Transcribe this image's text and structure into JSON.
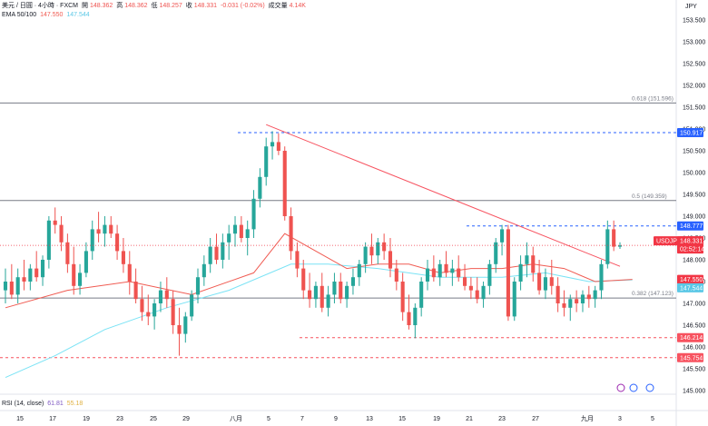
{
  "header": {
    "symbol": "美元 / 日圓 · 4小時 · FXCM",
    "open_label": "開",
    "open": "148.362",
    "high_label": "高",
    "high": "148.362",
    "low_label": "低",
    "low": "148.257",
    "close_label": "收",
    "close": "148.331",
    "change": "-0.031 (-0.02%)",
    "volume_label": "成交量",
    "volume": "4.14K",
    "ema_label": "EMA 50/100",
    "ema50": "147.550",
    "ema100": "147.544",
    "currency": "JPY"
  },
  "rsi": {
    "label": "RSI (14, close)",
    "value1": "61.81",
    "value2": "55.18"
  },
  "colors": {
    "up": "#26a69a",
    "down": "#ef5350",
    "ema50": "#f05b52",
    "ema100": "#7ae3f5",
    "trend": "#f7525f",
    "blue": "#2962ff",
    "fib": "#787b86"
  },
  "chart_data": {
    "type": "candlestick",
    "series_name": "USDJPY",
    "y_axis": {
      "min": 145.0,
      "max": 153.5,
      "side": "right",
      "ticks": [
        "153.500",
        "153.000",
        "152.500",
        "152.000",
        "151.500",
        "151.000",
        "150.500",
        "150.000",
        "149.500",
        "149.000",
        "148.500",
        "148.000",
        "147.500",
        "147.000",
        "146.500",
        "146.000",
        "145.500",
        "145.000"
      ]
    },
    "x_axis": {
      "labels": [
        "15",
        "17",
        "19",
        "23",
        "25",
        "29",
        "八月",
        "5",
        "7",
        "9",
        "13",
        "15",
        "19",
        "21",
        "23",
        "27",
        "九月",
        "3",
        "5"
      ]
    },
    "ohlc": [
      [
        147.3,
        147.8,
        147.0,
        147.5
      ],
      [
        147.5,
        147.9,
        147.1,
        147.2
      ],
      [
        147.2,
        147.8,
        147.0,
        147.6
      ],
      [
        147.6,
        148.0,
        147.3,
        147.5
      ],
      [
        147.5,
        147.9,
        147.3,
        147.8
      ],
      [
        147.8,
        148.2,
        147.5,
        147.6
      ],
      [
        147.6,
        148.1,
        147.4,
        148.0
      ],
      [
        148.0,
        149.0,
        147.8,
        148.9
      ],
      [
        148.9,
        149.2,
        148.6,
        148.8
      ],
      [
        148.8,
        149.0,
        148.2,
        148.4
      ],
      [
        148.4,
        148.6,
        147.7,
        147.9
      ],
      [
        147.9,
        148.3,
        147.2,
        147.4
      ],
      [
        147.4,
        147.9,
        147.2,
        147.7
      ],
      [
        147.7,
        148.4,
        147.6,
        148.2
      ],
      [
        148.2,
        148.9,
        148.0,
        148.7
      ],
      [
        148.7,
        149.1,
        148.4,
        148.6
      ],
      [
        148.6,
        149.0,
        148.3,
        148.8
      ],
      [
        148.8,
        149.0,
        148.5,
        148.6
      ],
      [
        148.6,
        148.8,
        148.0,
        148.2
      ],
      [
        148.2,
        148.5,
        147.7,
        147.9
      ],
      [
        147.9,
        148.2,
        147.2,
        147.5
      ],
      [
        147.5,
        147.8,
        147.0,
        147.1
      ],
      [
        147.1,
        147.4,
        146.6,
        146.8
      ],
      [
        146.8,
        147.2,
        146.5,
        146.7
      ],
      [
        146.7,
        147.1,
        146.4,
        147.0
      ],
      [
        147.0,
        147.5,
        146.8,
        147.3
      ],
      [
        147.3,
        147.6,
        146.9,
        147.1
      ],
      [
        147.1,
        147.3,
        146.3,
        146.5
      ],
      [
        146.5,
        146.9,
        145.8,
        146.3
      ],
      [
        146.3,
        146.8,
        146.1,
        146.7
      ],
      [
        146.7,
        147.3,
        146.6,
        147.2
      ],
      [
        147.2,
        147.8,
        147.0,
        147.6
      ],
      [
        147.6,
        148.1,
        147.4,
        147.9
      ],
      [
        147.9,
        148.5,
        147.7,
        148.3
      ],
      [
        148.3,
        148.6,
        147.9,
        148.0
      ],
      [
        148.0,
        148.6,
        147.8,
        148.4
      ],
      [
        148.4,
        148.8,
        148.0,
        148.6
      ],
      [
        148.6,
        149.0,
        148.3,
        148.8
      ],
      [
        148.8,
        149.0,
        148.4,
        148.5
      ],
      [
        148.5,
        148.9,
        148.1,
        148.7
      ],
      [
        148.7,
        149.6,
        148.5,
        149.4
      ],
      [
        149.4,
        150.1,
        149.2,
        149.9
      ],
      [
        149.9,
        150.8,
        149.7,
        150.6
      ],
      [
        150.6,
        150.95,
        150.3,
        150.7
      ],
      [
        150.7,
        150.9,
        150.4,
        150.5
      ],
      [
        150.5,
        150.6,
        148.9,
        149.0
      ],
      [
        149.0,
        149.2,
        148.0,
        148.2
      ],
      [
        148.2,
        148.4,
        147.6,
        147.8
      ],
      [
        147.8,
        148.0,
        147.1,
        147.3
      ],
      [
        147.3,
        147.7,
        146.9,
        147.1
      ],
      [
        147.1,
        147.5,
        146.9,
        147.4
      ],
      [
        147.4,
        147.7,
        146.8,
        146.9
      ],
      [
        146.9,
        147.4,
        146.7,
        147.2
      ],
      [
        147.2,
        147.7,
        147.0,
        147.5
      ],
      [
        147.5,
        147.7,
        147.0,
        147.1
      ],
      [
        147.1,
        147.5,
        146.9,
        147.4
      ],
      [
        147.4,
        147.8,
        147.2,
        147.6
      ],
      [
        147.6,
        148.0,
        147.4,
        147.9
      ],
      [
        147.9,
        148.4,
        147.7,
        148.3
      ],
      [
        148.3,
        148.6,
        147.9,
        148.1
      ],
      [
        148.1,
        148.5,
        147.9,
        148.4
      ],
      [
        148.4,
        148.6,
        148.0,
        148.2
      ],
      [
        148.2,
        148.5,
        147.6,
        147.8
      ],
      [
        147.8,
        148.0,
        147.3,
        147.5
      ],
      [
        147.5,
        147.7,
        146.6,
        146.8
      ],
      [
        146.8,
        147.2,
        146.4,
        146.5
      ],
      [
        146.5,
        147.0,
        146.2,
        146.9
      ],
      [
        146.9,
        147.6,
        146.7,
        147.5
      ],
      [
        147.5,
        148.0,
        147.3,
        147.8
      ],
      [
        147.8,
        148.1,
        147.5,
        147.6
      ],
      [
        147.6,
        148.0,
        147.4,
        147.9
      ],
      [
        147.9,
        148.2,
        147.6,
        147.7
      ],
      [
        147.7,
        148.0,
        147.4,
        147.8
      ],
      [
        147.8,
        148.1,
        147.5,
        147.6
      ],
      [
        147.6,
        147.9,
        147.3,
        147.4
      ],
      [
        147.4,
        147.6,
        147.1,
        147.3
      ],
      [
        147.3,
        147.6,
        147.0,
        147.1
      ],
      [
        147.1,
        147.5,
        146.9,
        147.4
      ],
      [
        147.4,
        148.0,
        147.2,
        147.9
      ],
      [
        147.9,
        148.5,
        147.7,
        148.4
      ],
      [
        148.4,
        148.8,
        148.1,
        148.7
      ],
      [
        148.7,
        148.8,
        146.6,
        146.7
      ],
      [
        146.7,
        147.6,
        146.6,
        147.5
      ],
      [
        147.5,
        148.1,
        147.3,
        147.9
      ],
      [
        147.9,
        148.4,
        147.6,
        148.1
      ],
      [
        148.1,
        148.3,
        147.5,
        147.7
      ],
      [
        147.7,
        148.0,
        147.2,
        147.3
      ],
      [
        147.3,
        147.8,
        147.1,
        147.6
      ],
      [
        147.6,
        148.0,
        147.2,
        147.4
      ],
      [
        147.4,
        147.6,
        146.8,
        147.0
      ],
      [
        147.0,
        147.3,
        146.7,
        146.9
      ],
      [
        146.9,
        147.2,
        146.6,
        147.1
      ],
      [
        147.1,
        147.3,
        146.8,
        147.0
      ],
      [
        147.0,
        147.3,
        146.8,
        147.2
      ],
      [
        147.2,
        147.4,
        146.9,
        147.1
      ],
      [
        147.1,
        147.4,
        146.9,
        147.3
      ],
      [
        147.3,
        148.0,
        147.1,
        147.9
      ],
      [
        147.9,
        148.9,
        147.8,
        148.7
      ],
      [
        148.7,
        148.9,
        148.2,
        148.3
      ],
      [
        148.3,
        148.4,
        148.25,
        148.33
      ]
    ],
    "ema50": [
      [
        0,
        146.9
      ],
      [
        10,
        147.3
      ],
      [
        20,
        147.5
      ],
      [
        30,
        147.2
      ],
      [
        40,
        147.7
      ],
      [
        45,
        148.6
      ],
      [
        50,
        148.2
      ],
      [
        55,
        147.8
      ],
      [
        60,
        147.9
      ],
      [
        65,
        147.9
      ],
      [
        70,
        147.7
      ],
      [
        75,
        147.8
      ],
      [
        80,
        147.8
      ],
      [
        85,
        147.9
      ],
      [
        90,
        147.8
      ],
      [
        95,
        147.5
      ],
      [
        101,
        147.55
      ]
    ],
    "ema100": [
      [
        0,
        145.3
      ],
      [
        8,
        145.8
      ],
      [
        16,
        146.4
      ],
      [
        26,
        146.9
      ],
      [
        36,
        147.3
      ],
      [
        46,
        147.9
      ],
      [
        52,
        147.9
      ],
      [
        60,
        147.8
      ],
      [
        70,
        147.6
      ],
      [
        80,
        147.6
      ],
      [
        87,
        147.7
      ],
      [
        94,
        147.5
      ],
      [
        101,
        147.54
      ]
    ],
    "trendline": {
      "from": [
        42,
        151.1
      ],
      "to": [
        99,
        147.85
      ]
    },
    "fib_levels": [
      {
        "label": "0.618 (151.596)",
        "value": 151.596
      },
      {
        "label": "0.5 (149.359)",
        "value": 149.359
      },
      {
        "label": "0.382 (147.123)",
        "value": 147.123
      }
    ],
    "dashed_levels": [
      {
        "value": 150.917,
        "color": "#2962ff",
        "text": "150.917"
      },
      {
        "value": 148.777,
        "color": "#2962ff",
        "text": "148.777"
      },
      {
        "value": 146.214,
        "color": "#f7525f",
        "text": "146.214"
      },
      {
        "value": 145.754,
        "color": "#f7525f",
        "text": "145.754"
      }
    ],
    "price_tags": [
      {
        "text": "USDJPY",
        "value": 148.331,
        "color": "#f23645"
      },
      {
        "text": "148.331",
        "value": 148.331,
        "color": "#f23645"
      },
      {
        "text": "02:52:14",
        "value": 148.331,
        "color": "#f23645"
      },
      {
        "text": "147.550",
        "value": 147.55,
        "color": "#f23645"
      },
      {
        "text": "147.544",
        "value": 147.544,
        "color": "#5bc8e6"
      }
    ]
  }
}
